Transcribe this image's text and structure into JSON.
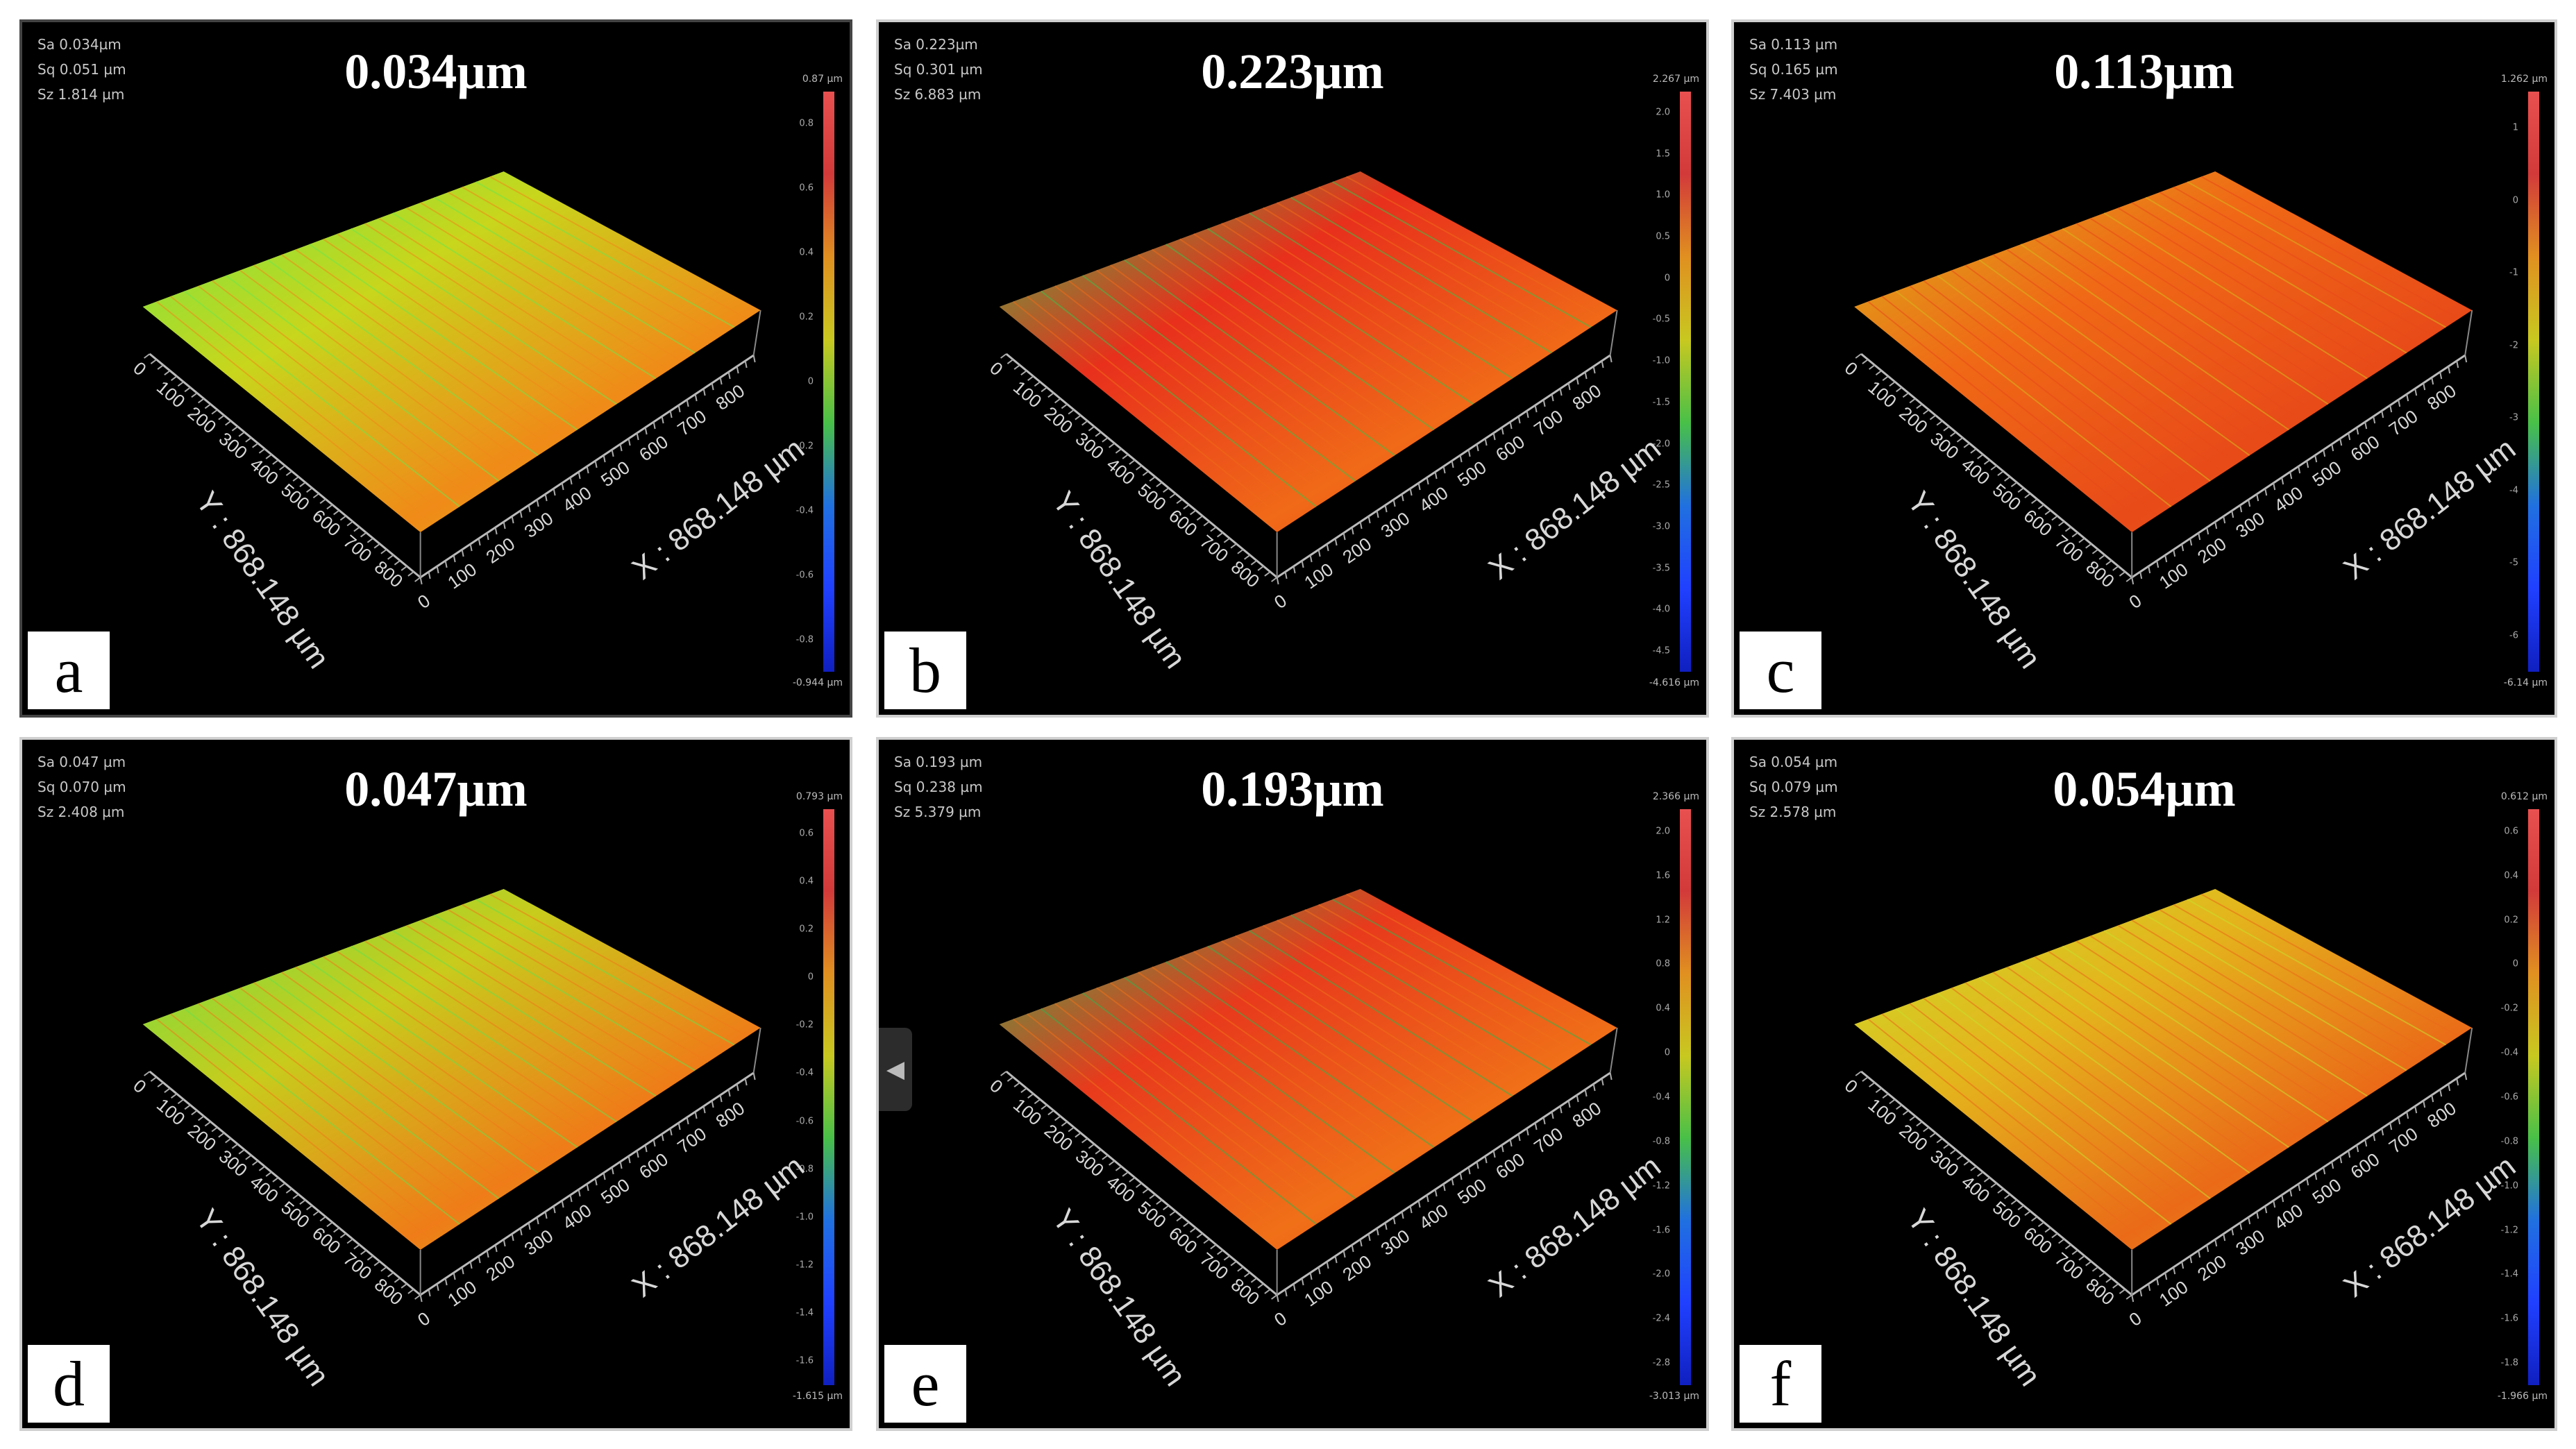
{
  "panels": [
    {
      "id": "a",
      "label": "a",
      "value": "0.034µm",
      "sa": "Sa 0.034µm",
      "sq": "Sq 0.051 µm",
      "sz": "Sz 1.814 µm",
      "cmax": "0.87 µm",
      "cmin": "-0.944 µm",
      "ticks": [
        "0.8",
        "0.6",
        "0.4",
        "0.2",
        "0",
        "-0.2",
        "-0.4",
        "-0.6",
        "-0.8"
      ],
      "surface": {
        "base": "#c8d61c",
        "alt": "#f08a18",
        "streak": "#6fe64a"
      }
    },
    {
      "id": "b",
      "label": "b",
      "value": "0.223µm",
      "sa": "Sa 0.223µm",
      "sq": "Sq 0.301 µm",
      "sz": "Sz 6.883 µm",
      "cmax": "2.267 µm",
      "cmin": "-4.616 µm",
      "ticks": [
        "2.0",
        "1.5",
        "1.0",
        "0.5",
        "0",
        "-0.5",
        "-1.0",
        "-1.5",
        "-2.0",
        "-2.5",
        "-3.0",
        "-3.5",
        "-4.0",
        "-4.5"
      ],
      "surface": {
        "base": "#e8301c",
        "alt": "#f06a18",
        "streak": "#39c24a"
      }
    },
    {
      "id": "c",
      "label": "c",
      "value": "0.113µm",
      "sa": "Sa 0.113 µm",
      "sq": "Sq 0.165 µm",
      "sz": "Sz 7.403 µm",
      "cmax": "1.262 µm",
      "cmin": "-6.14 µm",
      "ticks": [
        "1",
        "0",
        "-1",
        "-2",
        "-3",
        "-4",
        "-5",
        "-6"
      ],
      "surface": {
        "base": "#f06a16",
        "alt": "#e84a18",
        "streak": "#d6b81c"
      }
    },
    {
      "id": "d",
      "label": "d",
      "value": "0.047µm",
      "sa": "Sa 0.047 µm",
      "sq": "Sq 0.070 µm",
      "sz": "Sz 2.408 µm",
      "cmax": "0.793 µm",
      "cmin": "-1.615 µm",
      "ticks": [
        "0.6",
        "0.4",
        "0.2",
        "0",
        "-0.2",
        "-0.4",
        "-0.6",
        "-0.8",
        "-1.0",
        "-1.2",
        "-1.4",
        "-1.6"
      ],
      "surface": {
        "base": "#c8cc1c",
        "alt": "#ef7c18",
        "streak": "#68e04a"
      }
    },
    {
      "id": "e",
      "label": "e",
      "value": "0.193µm",
      "sa": "Sa 0.193 µm",
      "sq": "Sq 0.238 µm",
      "sz": "Sz 5.379 µm",
      "cmax": "2.366 µm",
      "cmin": "-3.013 µm",
      "ticks": [
        "2.0",
        "1.6",
        "1.2",
        "0.8",
        "0.4",
        "0",
        "-0.4",
        "-0.8",
        "-1.2",
        "-1.6",
        "-2.0",
        "-2.4",
        "-2.8"
      ],
      "surface": {
        "base": "#e83a1c",
        "alt": "#f07018",
        "streak": "#2cb650"
      }
    },
    {
      "id": "f",
      "label": "f",
      "value": "0.054µm",
      "sa": "Sa 0.054 µm",
      "sq": "Sq 0.079 µm",
      "sz": "Sz 2.578 µm",
      "cmax": "0.612 µm",
      "cmin": "-1.966 µm",
      "ticks": [
        "0.6",
        "0.4",
        "0.2",
        "0",
        "-0.2",
        "-0.4",
        "-0.6",
        "-0.8",
        "-1.0",
        "-1.2",
        "-1.4",
        "-1.6",
        "-1.8"
      ],
      "surface": {
        "base": "#e4b41c",
        "alt": "#ea6a18",
        "streak": "#c8e02c"
      }
    }
  ],
  "axes": {
    "x_label": "X : 868.148 µm",
    "y_label": "Y : 868.148 µm",
    "ticks": [
      "0",
      "100",
      "200",
      "300",
      "400",
      "500",
      "600",
      "700",
      "800"
    ]
  },
  "colorbar": {
    "colors": [
      "#e85050",
      "#d23a3a",
      "#e09020",
      "#c8c820",
      "#48c048",
      "#2070e0",
      "#2040ff",
      "#1020c0"
    ]
  },
  "handle_icon": "triangle-left-icon"
}
